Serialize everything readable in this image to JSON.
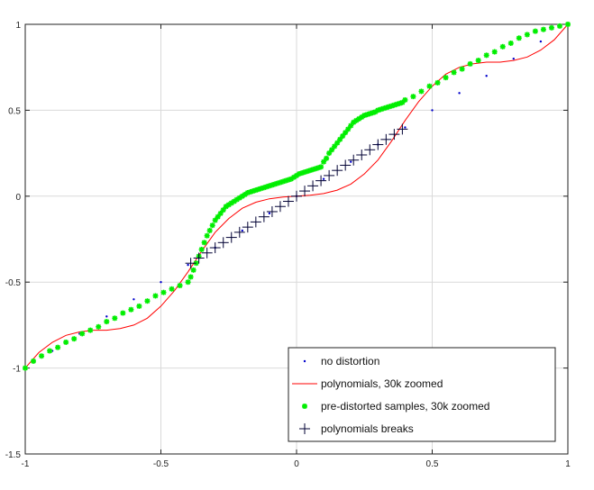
{
  "chart_data": {
    "type": "line",
    "xlim": [
      -1,
      1
    ],
    "ylim": [
      -1.5,
      1
    ],
    "xticks": [
      -1,
      -0.5,
      0,
      0.5,
      1
    ],
    "xtick_labels": [
      "-1",
      "-0.5",
      "0",
      "0.5",
      "1"
    ],
    "yticks": [
      -1.5,
      -1,
      -0.5,
      0,
      0.5,
      1
    ],
    "ytick_labels": [
      "-1.5",
      "-1",
      "-0.5",
      "0",
      "0.5",
      "1"
    ],
    "grid": true,
    "legend_position": "bottom-right",
    "series": [
      {
        "name": "no distortion",
        "style": "dots",
        "color": "#0000cc",
        "x": [
          -1,
          -0.9,
          -0.8,
          -0.7,
          -0.6,
          -0.5,
          -0.4,
          -0.3,
          -0.2,
          -0.1,
          0,
          0.1,
          0.2,
          0.3,
          0.4,
          0.5,
          0.6,
          0.7,
          0.8,
          0.9,
          1
        ],
        "y": [
          -1,
          -0.9,
          -0.8,
          -0.7,
          -0.6,
          -0.5,
          -0.4,
          -0.3,
          -0.2,
          -0.1,
          0,
          0.1,
          0.2,
          0.3,
          0.4,
          0.5,
          0.6,
          0.7,
          0.8,
          0.9,
          1
        ]
      },
      {
        "name": "polynomials, 30k zoomed",
        "style": "line",
        "color": "#ff0000",
        "x": [
          -1,
          -0.95,
          -0.9,
          -0.85,
          -0.8,
          -0.75,
          -0.7,
          -0.65,
          -0.6,
          -0.55,
          -0.5,
          -0.45,
          -0.4,
          -0.35,
          -0.3,
          -0.25,
          -0.2,
          -0.15,
          -0.1,
          -0.05,
          0,
          0.05,
          0.1,
          0.15,
          0.2,
          0.25,
          0.3,
          0.35,
          0.4,
          0.45,
          0.5,
          0.55,
          0.6,
          0.65,
          0.7,
          0.75,
          0.8,
          0.85,
          0.9,
          0.95,
          1
        ],
        "y": [
          -1,
          -0.91,
          -0.85,
          -0.81,
          -0.79,
          -0.78,
          -0.78,
          -0.77,
          -0.75,
          -0.71,
          -0.64,
          -0.55,
          -0.44,
          -0.32,
          -0.21,
          -0.13,
          -0.07,
          -0.035,
          -0.015,
          -0.005,
          0,
          0.005,
          0.015,
          0.035,
          0.07,
          0.13,
          0.21,
          0.32,
          0.44,
          0.55,
          0.64,
          0.71,
          0.75,
          0.77,
          0.78,
          0.78,
          0.79,
          0.81,
          0.85,
          0.91,
          1
        ]
      },
      {
        "name": "pre-distorted samples, 30k zoomed",
        "style": "stars",
        "color": "#00ee00",
        "x": [
          -1,
          -0.97,
          -0.94,
          -0.91,
          -0.88,
          -0.85,
          -0.82,
          -0.79,
          -0.76,
          -0.73,
          -0.7,
          -0.67,
          -0.64,
          -0.61,
          -0.58,
          -0.55,
          -0.52,
          -0.49,
          -0.46,
          -0.43,
          -0.4,
          -0.39,
          -0.38,
          -0.37,
          -0.36,
          -0.35,
          -0.34,
          -0.33,
          -0.32,
          -0.31,
          -0.3,
          -0.29,
          -0.28,
          -0.27,
          -0.26,
          -0.25,
          -0.24,
          -0.23,
          -0.22,
          -0.21,
          -0.2,
          -0.19,
          -0.18,
          -0.17,
          -0.16,
          -0.15,
          -0.14,
          -0.13,
          -0.12,
          -0.11,
          -0.1,
          -0.09,
          -0.08,
          -0.07,
          -0.06,
          -0.05,
          -0.04,
          -0.03,
          -0.02,
          -0.01,
          0,
          0.01,
          0.02,
          0.03,
          0.04,
          0.05,
          0.06,
          0.07,
          0.08,
          0.09,
          0.1,
          0.11,
          0.12,
          0.13,
          0.14,
          0.15,
          0.16,
          0.17,
          0.18,
          0.19,
          0.2,
          0.21,
          0.22,
          0.23,
          0.24,
          0.25,
          0.26,
          0.27,
          0.28,
          0.29,
          0.3,
          0.31,
          0.32,
          0.33,
          0.34,
          0.35,
          0.36,
          0.37,
          0.38,
          0.39,
          0.4,
          0.43,
          0.46,
          0.49,
          0.52,
          0.55,
          0.58,
          0.61,
          0.64,
          0.67,
          0.7,
          0.73,
          0.76,
          0.79,
          0.82,
          0.85,
          0.88,
          0.91,
          0.94,
          0.97,
          1
        ],
        "y": [
          -1,
          -0.96,
          -0.93,
          -0.9,
          -0.88,
          -0.85,
          -0.83,
          -0.8,
          -0.78,
          -0.76,
          -0.73,
          -0.71,
          -0.68,
          -0.66,
          -0.64,
          -0.61,
          -0.58,
          -0.56,
          -0.54,
          -0.52,
          -0.5,
          -0.47,
          -0.43,
          -0.39,
          -0.35,
          -0.31,
          -0.27,
          -0.23,
          -0.2,
          -0.17,
          -0.14,
          -0.12,
          -0.1,
          -0.08,
          -0.06,
          -0.05,
          -0.04,
          -0.03,
          -0.02,
          -0.01,
          0,
          0.01,
          0.02,
          0.025,
          0.03,
          0.035,
          0.04,
          0.045,
          0.05,
          0.055,
          0.06,
          0.065,
          0.07,
          0.075,
          0.08,
          0.085,
          0.09,
          0.095,
          0.1,
          0.11,
          0.12,
          0.13,
          0.135,
          0.14,
          0.145,
          0.15,
          0.155,
          0.16,
          0.165,
          0.17,
          0.2,
          0.22,
          0.25,
          0.27,
          0.29,
          0.31,
          0.33,
          0.35,
          0.37,
          0.39,
          0.41,
          0.43,
          0.44,
          0.45,
          0.46,
          0.47,
          0.475,
          0.48,
          0.485,
          0.49,
          0.5,
          0.505,
          0.51,
          0.515,
          0.52,
          0.525,
          0.53,
          0.535,
          0.54,
          0.545,
          0.56,
          0.58,
          0.61,
          0.64,
          0.66,
          0.69,
          0.72,
          0.74,
          0.77,
          0.79,
          0.82,
          0.84,
          0.87,
          0.89,
          0.92,
          0.94,
          0.96,
          0.97,
          0.98,
          0.99,
          1
        ]
      },
      {
        "name": "polynomials breaks",
        "style": "plus",
        "color": "#000033",
        "x": [
          -0.39,
          -0.36,
          -0.33,
          -0.3,
          -0.27,
          -0.24,
          -0.21,
          -0.18,
          -0.15,
          -0.12,
          -0.09,
          -0.06,
          -0.03,
          0,
          0.03,
          0.06,
          0.09,
          0.12,
          0.15,
          0.18,
          0.21,
          0.24,
          0.27,
          0.3,
          0.33,
          0.36,
          0.39
        ],
        "y": [
          -0.39,
          -0.36,
          -0.33,
          -0.3,
          -0.27,
          -0.24,
          -0.21,
          -0.18,
          -0.15,
          -0.12,
          -0.09,
          -0.06,
          -0.03,
          0,
          0.03,
          0.06,
          0.09,
          0.12,
          0.15,
          0.18,
          0.21,
          0.24,
          0.27,
          0.3,
          0.33,
          0.36,
          0.39
        ]
      }
    ]
  }
}
